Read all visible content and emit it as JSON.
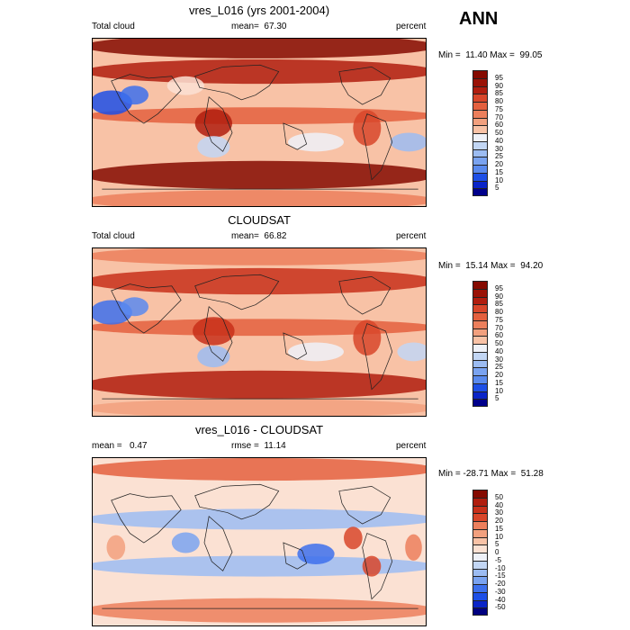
{
  "season": "ANN",
  "colors": {
    "levels_abs": [
      "#00008b",
      "#0a24c8",
      "#1d4fe6",
      "#3d70ec",
      "#5a8aee",
      "#7aa3f0",
      "#9cbcf2",
      "#c2d6f4",
      "#eef1f8",
      "#fbe1d3",
      "#f8c2a6",
      "#f2a07e",
      "#ec7f5c",
      "#e4603e",
      "#d8462a",
      "#c8301a",
      "#b01d0e",
      "#9a1206",
      "#850a00"
    ],
    "levels_diff": [
      "#000080",
      "#0a24c8",
      "#1d4fe6",
      "#3d70ec",
      "#5a8aee",
      "#7aa3f0",
      "#9cbcf2",
      "#c2d6f4",
      "#eef1f8",
      "#fbe1d3",
      "#f8c2a6",
      "#f2a07e",
      "#ec7f5c",
      "#e4603e",
      "#d8462a",
      "#c8301a",
      "#b01d0e",
      "#850a00"
    ]
  },
  "chart_data": [
    {
      "type": "heatmap",
      "title": "vres_L016 (yrs 2001-2004)",
      "left_label": "Total cloud",
      "mean_label": "mean=",
      "mean_value": "67.30",
      "units": "percent",
      "min_label": "Min =",
      "min_value": "11.40",
      "max_label": "Max =",
      "max_value": "99.05",
      "legend_ticks": [
        "95",
        "90",
        "85",
        "80",
        "75",
        "70",
        "60",
        "50",
        "40",
        "30",
        "25",
        "20",
        "15",
        "10",
        "5"
      ],
      "xlim": [
        0,
        360
      ],
      "ylim": [
        -90,
        90
      ],
      "blobs": [
        {
          "lon": 180,
          "lat": 82,
          "w": 380,
          "h": 18,
          "v": 18
        },
        {
          "lon": 180,
          "lat": 55,
          "w": 380,
          "h": 18,
          "v": 16
        },
        {
          "lon": 180,
          "lat": -55,
          "w": 380,
          "h": 22,
          "v": 18
        },
        {
          "lon": 180,
          "lat": -82,
          "w": 380,
          "h": 14,
          "v": 12
        },
        {
          "lon": 180,
          "lat": 8,
          "w": 380,
          "h": 10,
          "v": 13
        },
        {
          "lon": 130,
          "lat": 0,
          "w": 40,
          "h": 22,
          "v": 16
        },
        {
          "lon": 295,
          "lat": -5,
          "w": 30,
          "h": 30,
          "v": 14
        },
        {
          "lon": 20,
          "lat": 22,
          "w": 45,
          "h": 18,
          "v": 2
        },
        {
          "lon": 45,
          "lat": 30,
          "w": 30,
          "h": 12,
          "v": 3
        },
        {
          "lon": 240,
          "lat": -20,
          "w": 60,
          "h": 12,
          "v": 8
        },
        {
          "lon": 130,
          "lat": -25,
          "w": 35,
          "h": 15,
          "v": 7
        },
        {
          "lon": 340,
          "lat": -20,
          "w": 40,
          "h": 12,
          "v": 6
        },
        {
          "lon": 100,
          "lat": 40,
          "w": 40,
          "h": 12,
          "v": 9
        }
      ]
    },
    {
      "type": "heatmap",
      "title": "CLOUDSAT",
      "left_label": "Total cloud",
      "mean_label": "mean=",
      "mean_value": "66.82",
      "units": "percent",
      "min_label": "Min =",
      "min_value": "15.14",
      "max_label": "Max =",
      "max_value": "94.20",
      "legend_ticks": [
        "95",
        "90",
        "85",
        "80",
        "75",
        "70",
        "60",
        "50",
        "40",
        "30",
        "25",
        "20",
        "15",
        "10",
        "5"
      ],
      "xlim": [
        0,
        360
      ],
      "ylim": [
        -90,
        90
      ],
      "blobs": [
        {
          "lon": 180,
          "lat": 55,
          "w": 380,
          "h": 20,
          "v": 15
        },
        {
          "lon": 180,
          "lat": -55,
          "w": 380,
          "h": 22,
          "v": 16
        },
        {
          "lon": 180,
          "lat": -80,
          "w": 380,
          "h": 12,
          "v": 11
        },
        {
          "lon": 180,
          "lat": 82,
          "w": 380,
          "h": 12,
          "v": 12
        },
        {
          "lon": 180,
          "lat": 6,
          "w": 380,
          "h": 10,
          "v": 13
        },
        {
          "lon": 130,
          "lat": 2,
          "w": 45,
          "h": 22,
          "v": 15
        },
        {
          "lon": 295,
          "lat": -5,
          "w": 30,
          "h": 30,
          "v": 14
        },
        {
          "lon": 20,
          "lat": 22,
          "w": 45,
          "h": 18,
          "v": 3
        },
        {
          "lon": 45,
          "lat": 28,
          "w": 30,
          "h": 12,
          "v": 4
        },
        {
          "lon": 240,
          "lat": -20,
          "w": 60,
          "h": 12,
          "v": 8
        },
        {
          "lon": 130,
          "lat": -25,
          "w": 35,
          "h": 15,
          "v": 6
        },
        {
          "lon": 345,
          "lat": -20,
          "w": 35,
          "h": 12,
          "v": 7
        }
      ]
    },
    {
      "type": "heatmap",
      "title": "vres_L016 - CLOUDSAT",
      "left_label": "mean =",
      "left_value": "0.47",
      "mean_label": "rmse =",
      "mean_value": "11.14",
      "units": "percent",
      "min_label": "Min =",
      "min_value": "-28.71",
      "max_label": "Max =",
      "max_value": "51.28",
      "legend_ticks": [
        "50",
        "40",
        "30",
        "20",
        "15",
        "10",
        "5",
        "0",
        "-5",
        "-10",
        "-15",
        "-20",
        "-30",
        "-40",
        "-50"
      ],
      "xlim": [
        0,
        360
      ],
      "ylim": [
        -90,
        90
      ],
      "blobs": [
        {
          "lon": 180,
          "lat": 78,
          "w": 380,
          "h": 16,
          "v": 13
        },
        {
          "lon": 180,
          "lat": -72,
          "w": 380,
          "h": 18,
          "v": 12
        },
        {
          "lon": 180,
          "lat": 25,
          "w": 380,
          "h": 14,
          "v": 6
        },
        {
          "lon": 180,
          "lat": -25,
          "w": 380,
          "h": 14,
          "v": 6
        },
        {
          "lon": 240,
          "lat": -12,
          "w": 40,
          "h": 14,
          "v": 3
        },
        {
          "lon": 280,
          "lat": 5,
          "w": 20,
          "h": 16,
          "v": 14
        },
        {
          "lon": 345,
          "lat": -5,
          "w": 18,
          "h": 20,
          "v": 12
        },
        {
          "lon": 25,
          "lat": -5,
          "w": 20,
          "h": 18,
          "v": 11
        },
        {
          "lon": 100,
          "lat": 0,
          "w": 30,
          "h": 14,
          "v": 5
        },
        {
          "lon": 300,
          "lat": -25,
          "w": 20,
          "h": 14,
          "v": 14
        }
      ]
    }
  ]
}
